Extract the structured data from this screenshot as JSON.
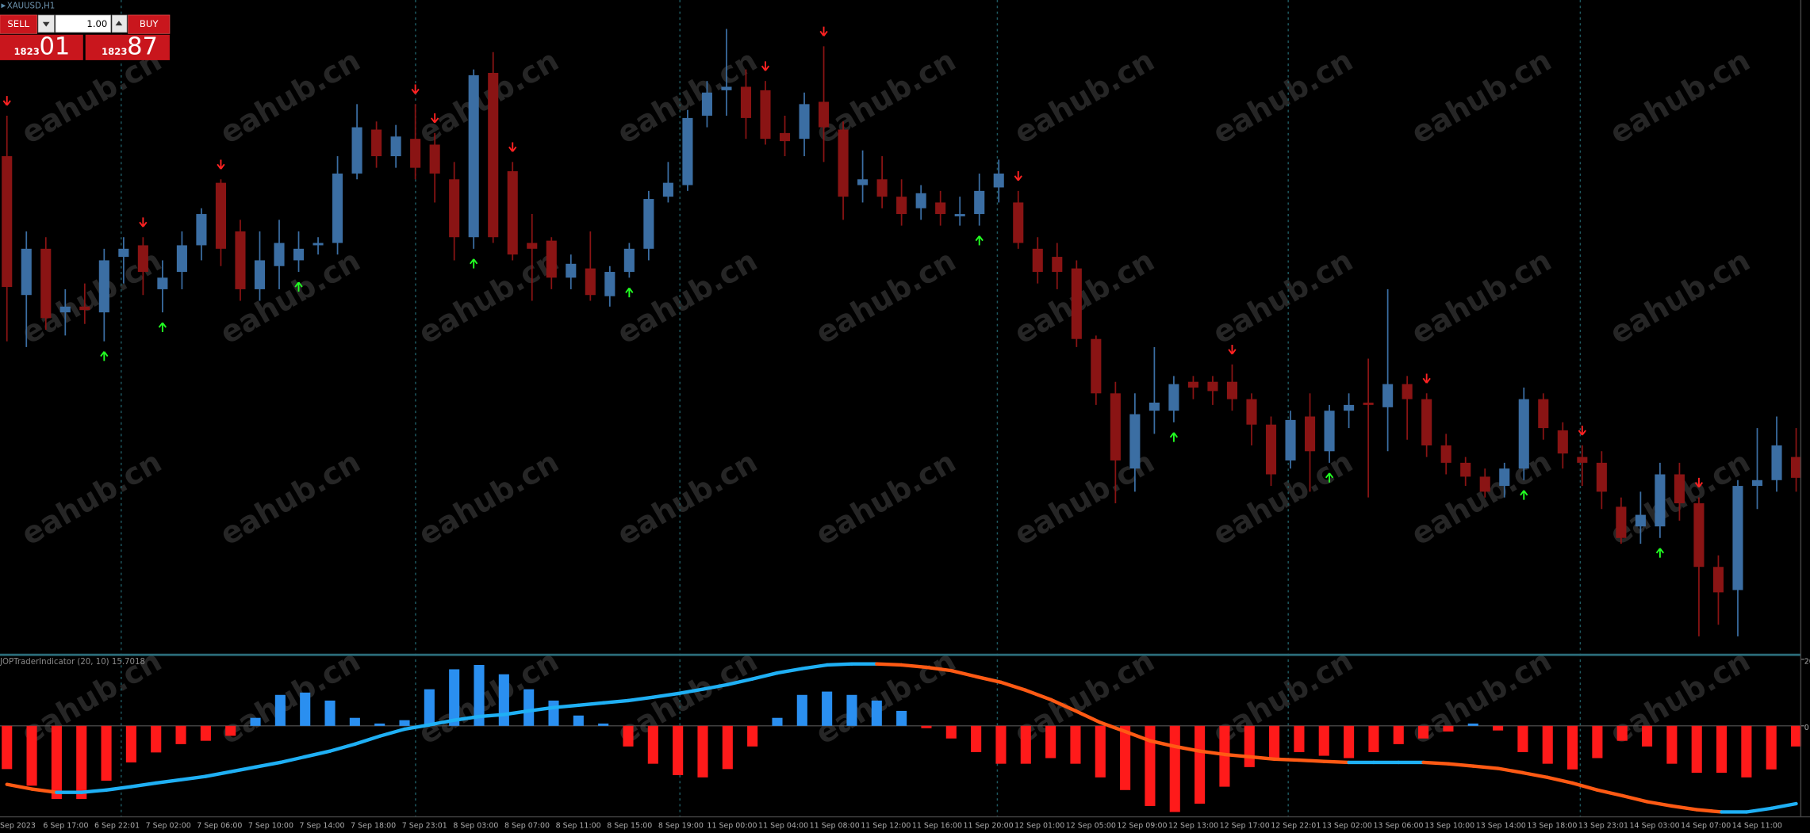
{
  "window_title": "XAUUSD,H1",
  "watermark": "eahub.cn",
  "trade_panel": {
    "sell_label": "SELL",
    "buy_label": "BUY",
    "lot": "1.00",
    "sell_price_small": "1823",
    "sell_price_big": "01",
    "buy_price_small": "1823",
    "buy_price_big": "87"
  },
  "chart_data": [
    {
      "type": "candlestick",
      "up_color": "#3b6ea3",
      "down_color": "#8a1414",
      "ylim": [
        1883.5,
        1940
      ],
      "sell_signal_color": "#ff2222",
      "buy_signal_color": "#22ff22",
      "ohlc": [
        [
          1926.5,
          1930,
          1910.5,
          1915.2
        ],
        [
          1914.5,
          1920,
          1910,
          1918.5
        ],
        [
          1918.5,
          1919.5,
          1911.5,
          1912.5
        ],
        [
          1913,
          1915,
          1911,
          1913.5
        ],
        [
          1913.5,
          1915.5,
          1912,
          1913.2
        ],
        [
          1913,
          1918.5,
          1910.5,
          1917.5
        ],
        [
          1917.8,
          1919.5,
          1915.5,
          1918.5
        ],
        [
          1918.8,
          1919.5,
          1914.5,
          1916.5
        ],
        [
          1915,
          1917.5,
          1913,
          1916
        ],
        [
          1916.5,
          1920,
          1915,
          1918.8
        ],
        [
          1918.8,
          1922,
          1917.5,
          1921.5
        ],
        [
          1924.2,
          1924.5,
          1917,
          1918.5
        ],
        [
          1920,
          1921,
          1914,
          1915
        ],
        [
          1915,
          1920,
          1914,
          1917.5
        ],
        [
          1917,
          1921,
          1915,
          1919
        ],
        [
          1917.5,
          1920,
          1916.5,
          1918.5
        ],
        [
          1918.8,
          1919.5,
          1918,
          1919
        ],
        [
          1919,
          1926.5,
          1918,
          1925
        ],
        [
          1925,
          1931,
          1924.5,
          1929
        ],
        [
          1928.8,
          1929.5,
          1925.5,
          1926.5
        ],
        [
          1926.5,
          1929.2,
          1925.5,
          1928.2
        ],
        [
          1928,
          1931,
          1924.5,
          1925.5
        ],
        [
          1927.5,
          1928.5,
          1922.5,
          1925
        ],
        [
          1924.5,
          1926,
          1917.5,
          1919.5
        ],
        [
          1919.5,
          1934,
          1918.5,
          1933.5
        ],
        [
          1933.7,
          1935.5,
          1919,
          1919.5
        ],
        [
          1925.2,
          1926,
          1917.5,
          1918
        ],
        [
          1919,
          1921.5,
          1914,
          1918.5
        ],
        [
          1919.2,
          1919.5,
          1915,
          1916
        ],
        [
          1916,
          1918,
          1915,
          1917.2
        ],
        [
          1916.8,
          1920,
          1914,
          1914.5
        ],
        [
          1914.4,
          1917,
          1913.5,
          1916.5
        ],
        [
          1916.5,
          1919,
          1916,
          1918.5
        ],
        [
          1918.5,
          1923.5,
          1917.5,
          1922.8
        ],
        [
          1923,
          1926,
          1922.5,
          1924.2
        ],
        [
          1924,
          1930.5,
          1923.5,
          1929.8
        ],
        [
          1930,
          1933,
          1929,
          1932
        ],
        [
          1932.2,
          1937.5,
          1930,
          1932.5
        ],
        [
          1932.5,
          1934,
          1928,
          1929.8
        ],
        [
          1932.2,
          1933,
          1927.5,
          1928
        ],
        [
          1928.5,
          1930,
          1926.5,
          1927.8
        ],
        [
          1928,
          1932,
          1926.5,
          1931
        ],
        [
          1931.2,
          1936,
          1926,
          1929
        ],
        [
          1928.8,
          1929.5,
          1921,
          1923
        ],
        [
          1924,
          1927,
          1922.5,
          1924.5
        ],
        [
          1924.5,
          1926.5,
          1922,
          1923
        ],
        [
          1923,
          1924.5,
          1920.5,
          1921.5
        ],
        [
          1922,
          1924,
          1921,
          1923.3
        ],
        [
          1922.5,
          1923.5,
          1920.5,
          1921.5
        ],
        [
          1921.3,
          1923,
          1920.5,
          1921.5
        ],
        [
          1921.5,
          1925,
          1920.5,
          1923.5
        ],
        [
          1923.8,
          1926.2,
          1922.5,
          1925
        ],
        [
          1922.5,
          1923.5,
          1918.5,
          1919
        ],
        [
          1918.5,
          1919.5,
          1915.5,
          1916.5
        ],
        [
          1917.8,
          1919,
          1915,
          1916.5
        ],
        [
          1916.8,
          1917.5,
          1910,
          1910.7
        ],
        [
          1910.7,
          1911,
          1905,
          1906
        ],
        [
          1906,
          1907,
          1896.5,
          1900.2
        ],
        [
          1899.5,
          1906,
          1897.5,
          1904.2
        ],
        [
          1904.5,
          1910,
          1902.5,
          1905.2
        ],
        [
          1904.5,
          1907.5,
          1903.5,
          1906.8
        ],
        [
          1907,
          1907.5,
          1905.5,
          1906.5
        ],
        [
          1907,
          1907.5,
          1905,
          1906.2
        ],
        [
          1907,
          1908.5,
          1904.5,
          1905.5
        ],
        [
          1905.5,
          1906,
          1901.5,
          1903.3
        ],
        [
          1903.3,
          1904,
          1898,
          1899
        ],
        [
          1900.2,
          1904.5,
          1899.5,
          1903.7
        ],
        [
          1904,
          1906,
          1897.5,
          1901
        ],
        [
          1901,
          1905,
          1900,
          1904.5
        ],
        [
          1904.5,
          1906,
          1903,
          1905
        ],
        [
          1905.2,
          1909,
          1897,
          1905
        ],
        [
          1904.8,
          1915,
          1901,
          1906.8
        ],
        [
          1906.8,
          1907.5,
          1902,
          1905.5
        ],
        [
          1905.5,
          1906,
          1900.5,
          1901.5
        ],
        [
          1901.5,
          1902.5,
          1899,
          1900
        ],
        [
          1900,
          1900.5,
          1898,
          1898.8
        ],
        [
          1898.8,
          1899.5,
          1897,
          1897.5
        ],
        [
          1898,
          1900,
          1897,
          1899.5
        ],
        [
          1899.5,
          1906.5,
          1898.5,
          1905.5
        ],
        [
          1905.5,
          1906,
          1902,
          1903
        ],
        [
          1902.8,
          1903.5,
          1899.5,
          1900.8
        ],
        [
          1900.5,
          1901.5,
          1898,
          1900
        ],
        [
          1900,
          1901,
          1896,
          1897.5
        ],
        [
          1896.2,
          1897,
          1893,
          1893.5
        ],
        [
          1894.5,
          1897.5,
          1893,
          1895.5
        ],
        [
          1894.5,
          1900,
          1893.5,
          1899
        ],
        [
          1899,
          1900,
          1895,
          1896.5
        ],
        [
          1896.5,
          1897,
          1885,
          1891
        ],
        [
          1891,
          1892,
          1886,
          1888.8
        ],
        [
          1889,
          1898.5,
          1885,
          1898
        ],
        [
          1898,
          1903,
          1896,
          1898.5
        ],
        [
          1898.5,
          1904,
          1897.5,
          1901.5
        ],
        [
          1900.5,
          1903,
          1897.5,
          1898.7
        ]
      ],
      "sell_signals": [
        0,
        7,
        11,
        21,
        22,
        26,
        39,
        42,
        52,
        63,
        73,
        81,
        87
      ],
      "buy_signals": [
        5,
        8,
        15,
        24,
        32,
        50,
        60,
        68,
        78,
        85
      ]
    },
    {
      "type": "bar",
      "title": "JOPTraderIndicator (20, 10) 15.7018",
      "up_color": "#2a8ff0",
      "down_color": "#ff1a1a",
      "ylim": [
        -27,
        21
      ],
      "yticks": [
        20,
        0
      ],
      "values": [
        -13,
        -18,
        -22,
        -22,
        -16.5,
        -11,
        -8,
        -5.5,
        -4.5,
        -3,
        2.4,
        9.3,
        10,
        7.6,
        2.4,
        0.7,
        1.7,
        11,
        17,
        18.3,
        15.5,
        11,
        7.6,
        3.1,
        0.7,
        -6.2,
        -11.4,
        -14.8,
        -15.5,
        -13,
        -6.2,
        2.4,
        9.3,
        10.3,
        9.3,
        7.6,
        4.5,
        -0.7,
        -3.8,
        -7.9,
        -11.4,
        -11.4,
        -9.7,
        -11.4,
        -15.5,
        -19.3,
        -24.1,
        -25.9,
        -23.4,
        -18.3,
        -12.4,
        -9.7,
        -7.9,
        -9,
        -9.7,
        -7.9,
        -5.5,
        -3.8,
        -1.7,
        0.7,
        -1.4,
        -7.9,
        -11.4,
        -13.1,
        -9.7,
        -4.5,
        -6.2,
        -11.4,
        -14.1,
        -14.1,
        -15.5,
        -13.1,
        -6.2
      ],
      "line": {
        "rising_color": "#1fb0f5",
        "falling_color": "#ff5a14",
        "values": [
          -17.6,
          -19,
          -20,
          -20,
          -19.3,
          -18.3,
          -17.2,
          -16.2,
          -15.2,
          -13.8,
          -12.4,
          -11,
          -9.3,
          -7.6,
          -5.5,
          -3.1,
          -1,
          0.3,
          1.7,
          2.8,
          3.4,
          4.5,
          5.5,
          6.2,
          6.9,
          7.6,
          8.6,
          9.7,
          11,
          12.4,
          14.1,
          15.9,
          17.2,
          18.3,
          18.6,
          18.6,
          18.3,
          17.6,
          16.6,
          14.8,
          13.1,
          10.7,
          7.9,
          4.5,
          1,
          -1.7,
          -4.5,
          -6.2,
          -7.6,
          -8.6,
          -9.3,
          -10,
          -10.3,
          -10.7,
          -11,
          -11,
          -11,
          -11,
          -11.4,
          -12.1,
          -12.8,
          -14.1,
          -15.5,
          -17.2,
          -19.3,
          -21,
          -22.8,
          -24.1,
          -25.2,
          -25.9,
          -25.9,
          -24.8,
          -23.4
        ]
      },
      "x_tick_labels": [
        "Sep 2023",
        "6 Sep 17:00",
        "6 Sep 22:01",
        "7 Sep 02:00",
        "7 Sep 06:00",
        "7 Sep 10:00",
        "7 Sep 14:00",
        "7 Sep 18:00",
        "7 Sep 23:01",
        "8 Sep 03:00",
        "8 Sep 07:00",
        "8 Sep 11:00",
        "8 Sep 15:00",
        "8 Sep 19:00",
        "11 Sep 00:00",
        "11 Sep 04:00",
        "11 Sep 08:00",
        "11 Sep 12:00",
        "11 Sep 16:00",
        "11 Sep 20:00",
        "12 Sep 01:00",
        "12 Sep 05:00",
        "12 Sep 09:00",
        "12 Sep 13:00",
        "12 Sep 17:00",
        "12 Sep 22:01",
        "13 Sep 02:00",
        "13 Sep 06:00",
        "13 Sep 10:00",
        "13 Sep 14:00",
        "13 Sep 18:00",
        "13 Sep 23:01",
        "14 Sep 03:00",
        "14 Sep 07:00",
        "14 Sep 11:00"
      ]
    }
  ]
}
